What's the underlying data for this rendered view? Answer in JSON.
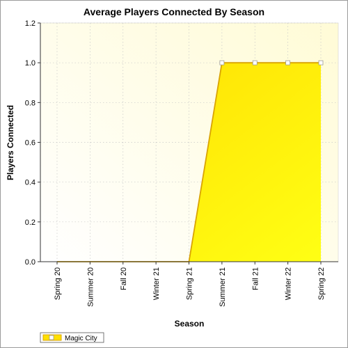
{
  "chart_data": {
    "type": "area",
    "title": "Average Players Connected By Season",
    "xlabel": "Season",
    "ylabel": "Players Connected",
    "categories": [
      "Spring 20",
      "Summer 20",
      "Fall 20",
      "Winter 21",
      "Spring 21",
      "Summer 21",
      "Fall 21",
      "Winter 22",
      "Spring 22"
    ],
    "series": [
      {
        "name": "Magic City",
        "values": [
          0,
          0,
          0,
          0,
          0,
          1,
          1,
          1,
          1
        ]
      }
    ],
    "ylim": [
      0,
      1.2
    ],
    "yticks": [
      "0.0",
      "0.2",
      "0.4",
      "0.6",
      "0.8",
      "1.0",
      "1.2"
    ],
    "grid": true,
    "legend_position": "bottom-left",
    "colors": {
      "fill_top": "#ffe000",
      "fill_bottom": "#ffff10",
      "line": "#d9a300",
      "marker_fill": "#ffffff",
      "plot_bg_top": "#fffbd6",
      "plot_bg_bottom": "#ffffff"
    }
  }
}
